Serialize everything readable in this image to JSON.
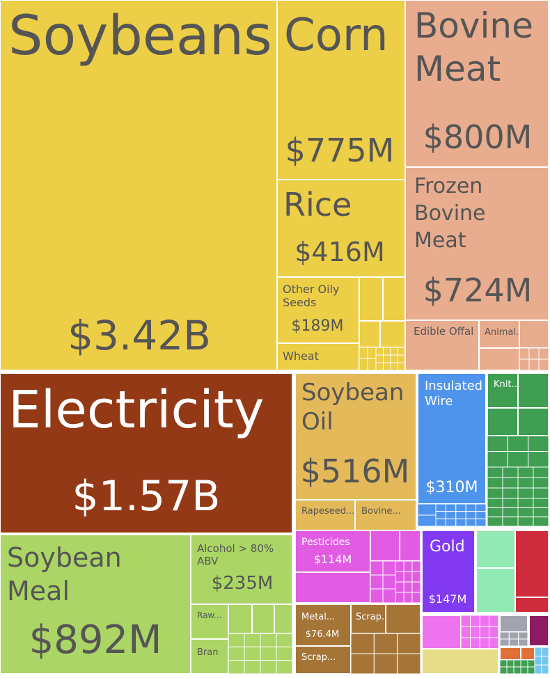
{
  "chart_data": {
    "type": "treemap",
    "colors": {
      "vegetable": "#ECCE47",
      "animal": "#E8AC8E",
      "energy": "#943916",
      "fats": "#E3B95A",
      "foodstuffs": "#ABD564",
      "machinery": "#4E94EC",
      "textiles": "#3F9E52",
      "chemicals": "#E15CE3",
      "precious": "#8239F2",
      "metals": "#A57538",
      "mint": "#93E9B3",
      "red": "#CF2D3D",
      "plastic_pink": "#ED74EE",
      "gray": "#A1A3AF",
      "plum": "#8E1A63",
      "khaki": "#E8DD8A",
      "orange": "#E07037",
      "lightblue": "#73C7EE"
    },
    "labeled": [
      {
        "name": "Soybeans",
        "value": "$3.42B"
      },
      {
        "name": "Corn",
        "value": "$775M"
      },
      {
        "name": "Bovine Meat",
        "value": "$800M"
      },
      {
        "name": "Rice",
        "value": "$416M"
      },
      {
        "name": "Frozen Bovine Meat",
        "value": "$724M"
      },
      {
        "name": "Other Oily Seeds",
        "value": "$189M"
      },
      {
        "name": "Wheat",
        "value": ""
      },
      {
        "name": "Edible Offal",
        "value": ""
      },
      {
        "name": "Animal...",
        "value": ""
      },
      {
        "name": "Electricity",
        "value": "$1.57B"
      },
      {
        "name": "Soybean Oil",
        "value": "$516M"
      },
      {
        "name": "Rapeseed...",
        "value": ""
      },
      {
        "name": "Bovine...",
        "value": ""
      },
      {
        "name": "Insulated Wire",
        "value": "$310M"
      },
      {
        "name": "Knit...",
        "value": ""
      },
      {
        "name": "Soybean Meal",
        "value": "$892M"
      },
      {
        "name": "Alcohol > 80% ABV",
        "value": "$235M"
      },
      {
        "name": "Raw...",
        "value": ""
      },
      {
        "name": "Bran",
        "value": ""
      },
      {
        "name": "Pesticides",
        "value": "$114M"
      },
      {
        "name": "Gold",
        "value": "$147M"
      },
      {
        "name": "Metal...",
        "value": "$76.4M"
      },
      {
        "name": "Scrap...",
        "value": ""
      },
      {
        "name": "Scrap...",
        "value": ""
      }
    ]
  }
}
